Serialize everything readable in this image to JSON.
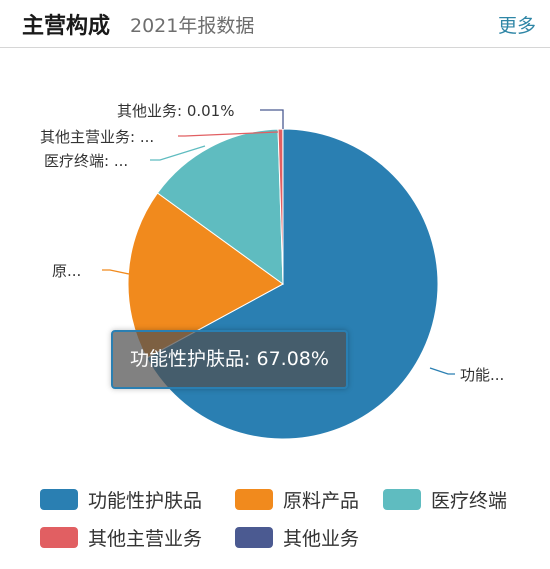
{
  "header": {
    "title": "主营构成",
    "subtitle": "2021年报数据",
    "more_label": "更多"
  },
  "tooltip": {
    "text": "功能性护肤品: 67.08%"
  },
  "chart_data": {
    "type": "pie",
    "series": [
      {
        "name": "功能性护肤品",
        "value": 67.08,
        "color": "#2a7fb2",
        "callout": "功能..."
      },
      {
        "name": "原料产品",
        "value": 17.9,
        "color": "#f18a1d",
        "callout": "原..."
      },
      {
        "name": "医疗终端",
        "value": 14.5,
        "color": "#5fbcc0",
        "callout": "医疗终端: ..."
      },
      {
        "name": "其他主营业务",
        "value": 0.5,
        "color": "#e15f62",
        "callout": "其他主营业务: ..."
      },
      {
        "name": "其他业务",
        "value": 0.01,
        "color": "#4b5a91",
        "callout": "其他业务: 0.01%"
      }
    ],
    "legend_position": "bottom"
  }
}
